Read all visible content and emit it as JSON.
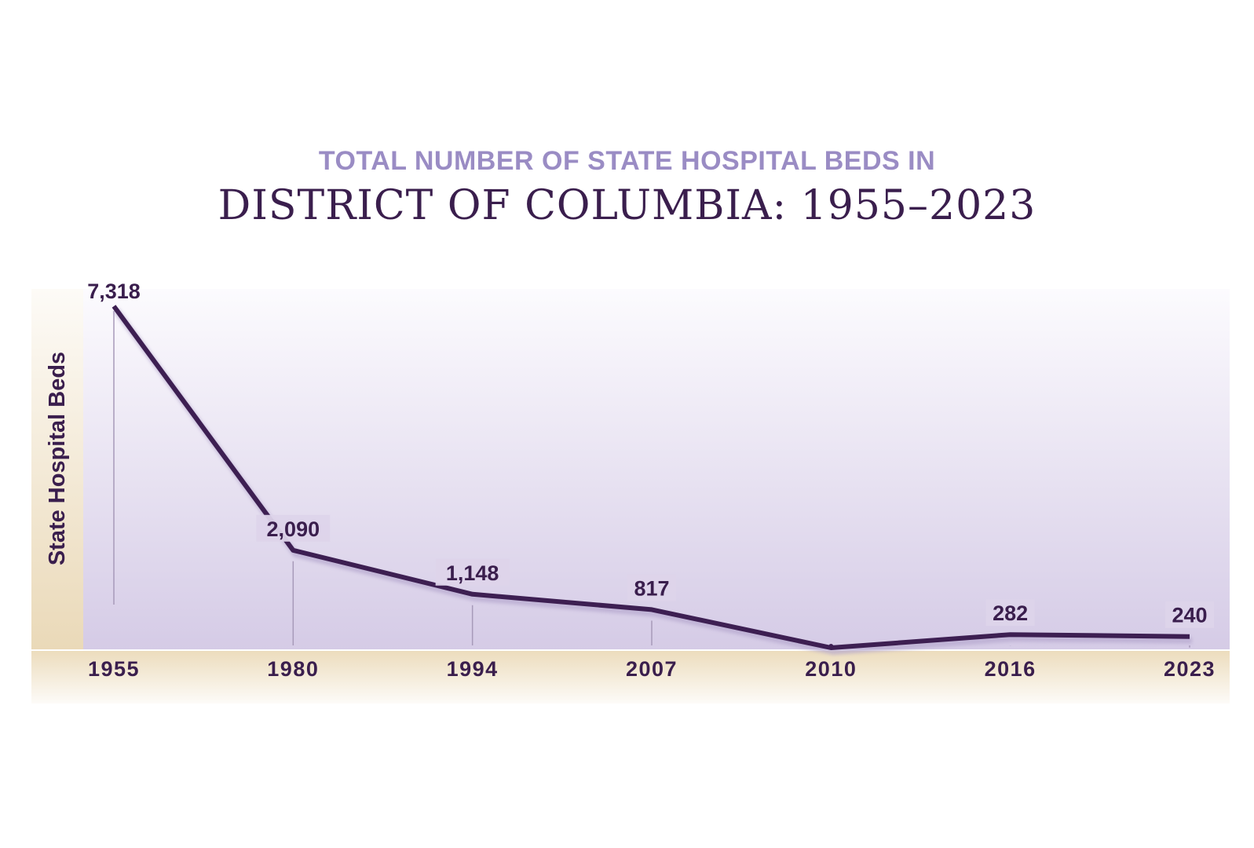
{
  "chart_data": {
    "type": "line",
    "subtitle": "TOTAL NUMBER OF STATE HOSPITAL BEDS IN",
    "title": "DISTRICT OF COLUMBIA: 1955–2023",
    "ylabel": "State Hospital Beds",
    "xlabel": "",
    "categories": [
      "1955",
      "1980",
      "1994",
      "2007",
      "2010",
      "2016",
      "2023"
    ],
    "series": [
      {
        "values": [
          7318,
          2090,
          1148,
          817,
          0,
          282,
          240
        ],
        "labels": [
          "7,318",
          "2,090",
          "1,148",
          "817",
          "",
          "282",
          "240"
        ]
      }
    ],
    "ylim": [
      0,
      7318
    ],
    "grid": false,
    "legend": "none",
    "colors": {
      "line": "#3d1f52",
      "text": "#3a1e4d",
      "subtitle": "#9a8cc4",
      "plot_top": "#fbfafd",
      "plot_bottom": "#d4cae6",
      "band": "#efe3c8"
    }
  }
}
